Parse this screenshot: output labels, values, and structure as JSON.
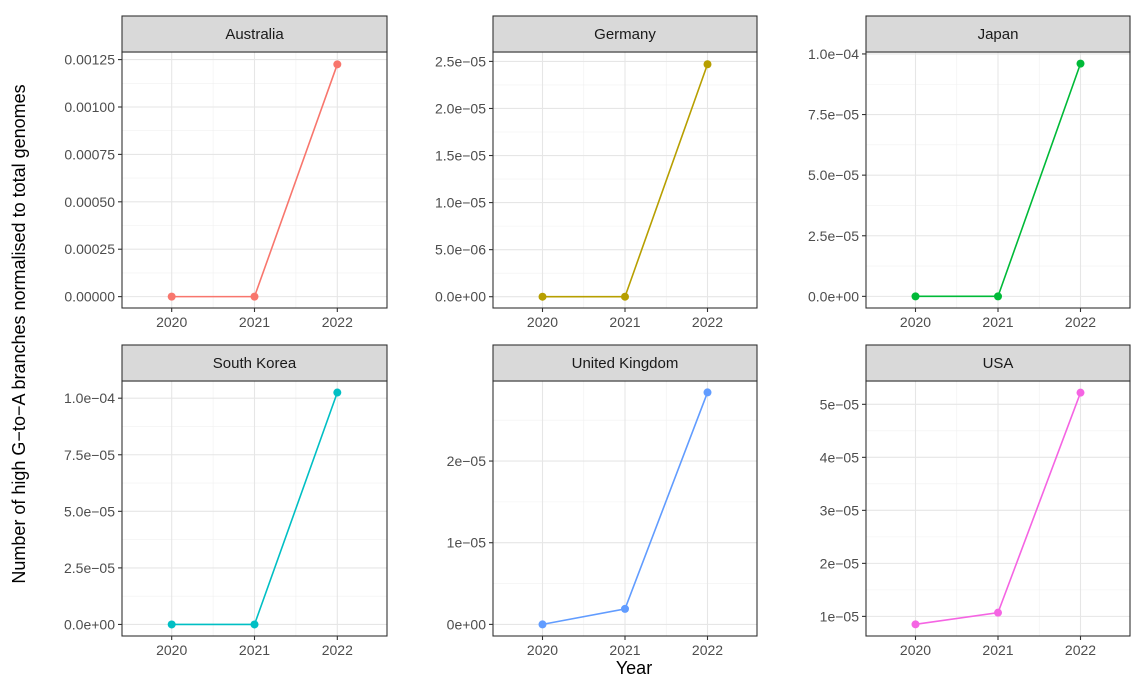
{
  "xlabel": "Year",
  "ylabel": "Number of high G−to−A branches normalised to total genomes",
  "chart_data": {
    "type": "line",
    "x": [
      "2020",
      "2021",
      "2022"
    ],
    "xlabel": "Year",
    "ylabel": "Number of high G−to−A branches normalised to total genomes",
    "grid": true,
    "panels": [
      {
        "name": "Australia",
        "color": "#F8766D",
        "values": [
          0,
          0,
          0.001225
        ],
        "ylim": [
          -6e-05,
          0.00129
        ],
        "yticks": [
          0,
          0.00025,
          0.0005,
          0.00075,
          0.001,
          0.00125
        ],
        "yticklabels": [
          "0.00000",
          "0.00025",
          "0.00050",
          "0.00075",
          "0.00100",
          "0.00125"
        ]
      },
      {
        "name": "Germany",
        "color": "#B79F00",
        "values": [
          0,
          0,
          2.47e-05
        ],
        "ylim": [
          -1.2e-06,
          2.6e-05
        ],
        "yticks": [
          0,
          5e-06,
          1e-05,
          1.5e-05,
          2e-05,
          2.5e-05
        ],
        "yticklabels": [
          "0.0e+00",
          "5.0e−06",
          "1.0e−05",
          "1.5e−05",
          "2.0e−05",
          "2.5e−05"
        ]
      },
      {
        "name": "Japan",
        "color": "#00BA38",
        "values": [
          0,
          0,
          9.6e-05
        ],
        "ylim": [
          -4.8e-06,
          0.0001008
        ],
        "yticks": [
          0,
          2.5e-05,
          5e-05,
          7.5e-05,
          0.0001
        ],
        "yticklabels": [
          "0.0e+00",
          "2.5e−05",
          "5.0e−05",
          "7.5e−05",
          "1.0e−04"
        ]
      },
      {
        "name": "South Korea",
        "color": "#00BFC4",
        "values": [
          0,
          0,
          0.0001025
        ],
        "ylim": [
          -5.1e-06,
          0.0001076
        ],
        "yticks": [
          0,
          2.5e-05,
          5e-05,
          7.5e-05,
          0.0001
        ],
        "yticklabels": [
          "0.0e+00",
          "2.5e−05",
          "5.0e−05",
          "7.5e−05",
          "1.0e−04"
        ]
      },
      {
        "name": "United Kingdom",
        "color": "#619CFF",
        "values": [
          0,
          1.9e-06,
          2.84e-05
        ],
        "ylim": [
          -1.42e-06,
          2.98e-05
        ],
        "yticks": [
          0,
          1e-05,
          2e-05
        ],
        "yticklabels": [
          "0e+00",
          "1e−05",
          "2e−05"
        ]
      },
      {
        "name": "USA",
        "color": "#F564E3",
        "values": [
          8.5e-06,
          1.07e-05,
          5.22e-05
        ],
        "ylim": [
          6.3e-06,
          5.44e-05
        ],
        "yticks": [
          1e-05,
          2e-05,
          3e-05,
          4e-05,
          5e-05
        ],
        "yticklabels": [
          "1e−05",
          "2e−05",
          "3e−05",
          "4e−05",
          "5e−05"
        ]
      }
    ]
  }
}
